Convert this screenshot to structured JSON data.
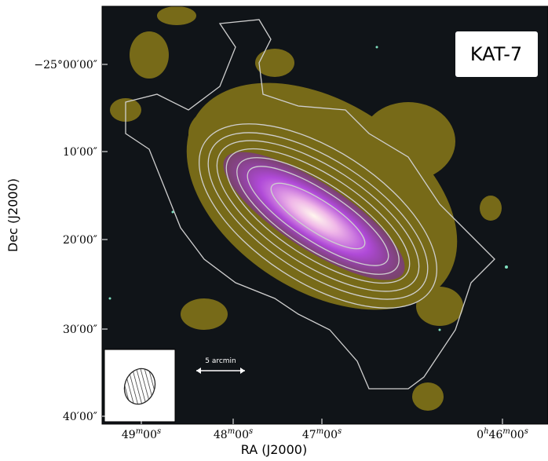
{
  "figure": {
    "label": "KAT-7",
    "scale_bar": "5 arcmin",
    "y_axis": {
      "title": "Dec (J2000)",
      "ticks": [
        "−25°00′00″",
        "10′00″",
        "20′00″",
        "30′00″",
        "40′00″"
      ]
    },
    "x_axis": {
      "title": "RA (J2000)",
      "ticks": [
        [
          "49",
          "m",
          "00",
          "s"
        ],
        [
          "48",
          "m",
          "00",
          "s"
        ],
        [
          "47",
          "m",
          "00",
          "s"
        ],
        [
          "0",
          "h",
          "46",
          "m",
          "00",
          "s"
        ]
      ]
    }
  }
}
